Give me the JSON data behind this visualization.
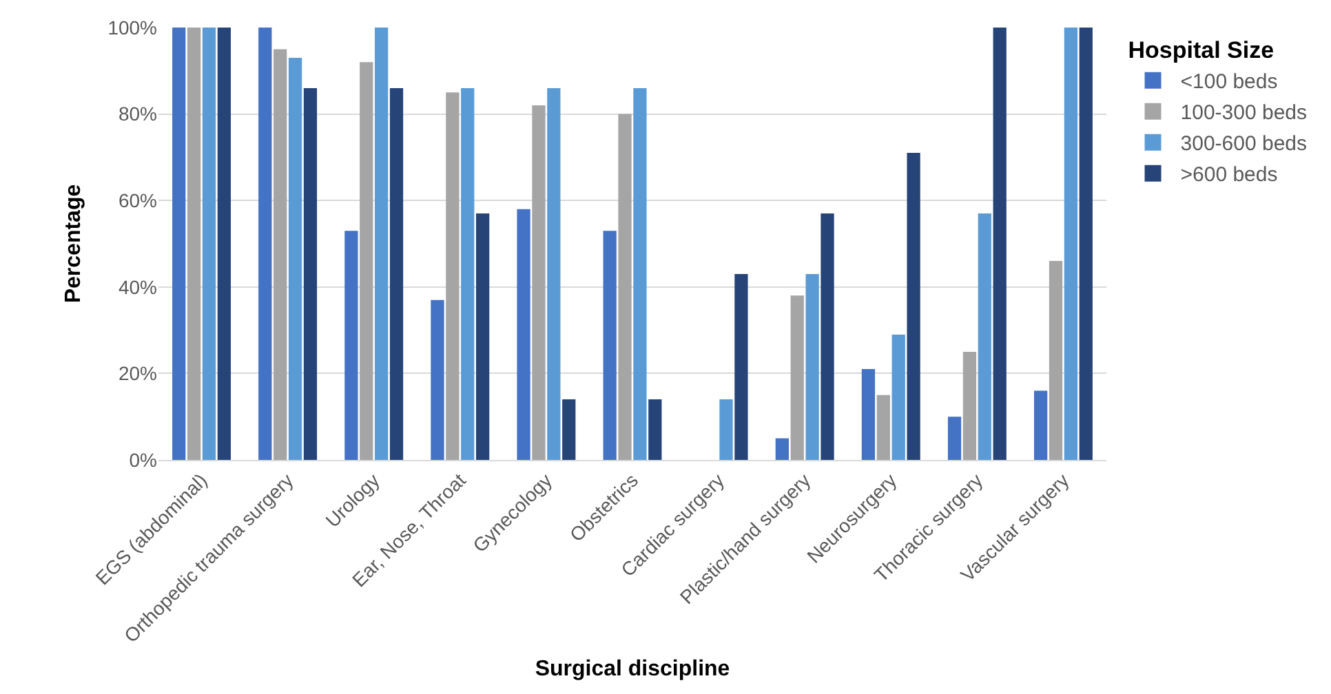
{
  "chart_data": {
    "type": "bar",
    "xlabel": "Surgical discipline",
    "ylabel": "Percentage",
    "legend_title": "Hospital Size",
    "categories": [
      "EGS (abdominal)",
      "Orthopedic trauma surgery",
      "Urology",
      "Ear, Nose, Throat",
      "Gynecology",
      "Obstetrics",
      "Cardiac surgery",
      "Plastic/hand surgery",
      "Neurosurgery",
      "Thoracic surgery",
      "Vascular surgery"
    ],
    "series": [
      {
        "name": "<100 beds",
        "color": "#4472c4",
        "values": [
          100,
          100,
          53,
          37,
          58,
          53,
          0,
          5,
          21,
          10,
          16
        ]
      },
      {
        "name": "100-300 beds",
        "color": "#a5a5a5",
        "values": [
          100,
          95,
          92,
          85,
          82,
          80,
          0,
          38,
          15,
          25,
          46
        ]
      },
      {
        "name": "300-600 beds",
        "color": "#5b9bd5",
        "values": [
          100,
          93,
          100,
          86,
          86,
          86,
          14,
          43,
          29,
          57,
          100
        ]
      },
      {
        "name": ">600 beds",
        "color": "#264478",
        "values": [
          100,
          86,
          86,
          57,
          14,
          14,
          43,
          57,
          71,
          100,
          100
        ]
      }
    ],
    "ylim": [
      0,
      100
    ],
    "yticks": [
      {
        "value": 0,
        "label": "0%"
      },
      {
        "value": 20,
        "label": "20%"
      },
      {
        "value": 40,
        "label": "40%"
      },
      {
        "value": 60,
        "label": "60%"
      },
      {
        "value": 80,
        "label": "80%"
      },
      {
        "value": 100,
        "label": "100%"
      }
    ],
    "grid": "y",
    "legend": "top right"
  }
}
